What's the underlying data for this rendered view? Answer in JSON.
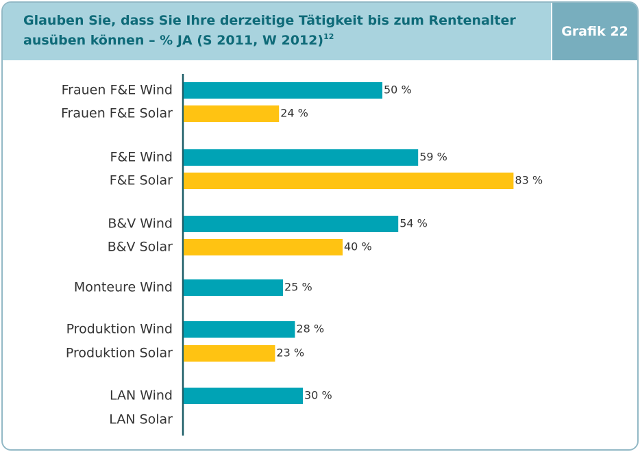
{
  "chart_data": {
    "type": "bar",
    "orientation": "horizontal",
    "title": "Glauben Sie, dass Sie Ihre derzeitige Tätigkeit bis zum Rentenalter ausüben können – % JA (S 2011, W 2012)",
    "title_footnote": "12",
    "badge": "Grafik 22",
    "categories": [
      "Frauen F&E Wind",
      "Frauen F&E Solar",
      "F&E Wind",
      "F&E Solar",
      "B&V Wind",
      "B&V Solar",
      "Monteure Wind",
      "Produktion Wind",
      "Produktion Solar",
      "LAN Wind",
      "LAN Solar"
    ],
    "values": [
      50,
      24,
      59,
      83,
      54,
      40,
      25,
      28,
      23,
      30,
      null
    ],
    "value_labels": [
      "50 %",
      "24 %",
      "59 %",
      "83 %",
      "54 %",
      "40 %",
      "25 %",
      "28 %",
      "23 %",
      "30 %",
      null
    ],
    "colors": [
      "#00a3b5",
      "#ffc312",
      "#00a3b5",
      "#ffc312",
      "#00a3b5",
      "#ffc312",
      "#00a3b5",
      "#00a3b5",
      "#ffc312",
      "#00a3b5",
      "#ffc312"
    ],
    "xlim": [
      0,
      100
    ]
  }
}
